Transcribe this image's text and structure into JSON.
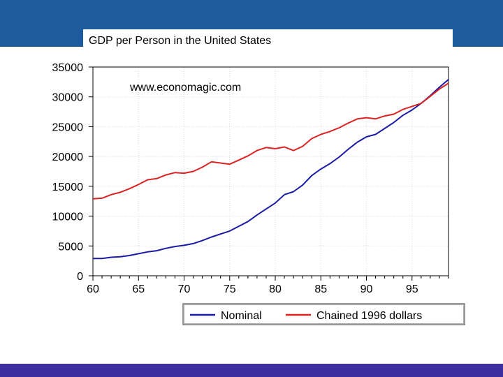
{
  "slide": {
    "title": "GDP per Person in the United States",
    "colors": {
      "header_band": "#1e5a9e",
      "footer_band": "#3d2fa0"
    }
  },
  "chart_data": {
    "type": "line",
    "title": "GDP per Person in the United States",
    "annotation": "www.economagic.com",
    "xlabel": "",
    "ylabel": "",
    "xlim": [
      1960,
      1999
    ],
    "ylim": [
      0,
      35000
    ],
    "x_ticks": [
      {
        "value": 1960,
        "label": "60"
      },
      {
        "value": 1965,
        "label": "65"
      },
      {
        "value": 1970,
        "label": "70"
      },
      {
        "value": 1975,
        "label": "75"
      },
      {
        "value": 1980,
        "label": "80"
      },
      {
        "value": 1985,
        "label": "85"
      },
      {
        "value": 1990,
        "label": "90"
      },
      {
        "value": 1995,
        "label": "95"
      }
    ],
    "y_ticks": [
      {
        "value": 0,
        "label": "0"
      },
      {
        "value": 5000,
        "label": "5000"
      },
      {
        "value": 10000,
        "label": "10000"
      },
      {
        "value": 15000,
        "label": "15000"
      },
      {
        "value": 20000,
        "label": "20000"
      },
      {
        "value": 25000,
        "label": "25000"
      },
      {
        "value": 30000,
        "label": "30000"
      },
      {
        "value": 35000,
        "label": "35000"
      }
    ],
    "grid": true,
    "legend_position": "bottom",
    "x": [
      1960,
      1961,
      1962,
      1963,
      1964,
      1965,
      1966,
      1967,
      1968,
      1969,
      1970,
      1971,
      1972,
      1973,
      1974,
      1975,
      1976,
      1977,
      1978,
      1979,
      1980,
      1981,
      1982,
      1983,
      1984,
      1985,
      1986,
      1987,
      1988,
      1989,
      1990,
      1991,
      1992,
      1993,
      1994,
      1995,
      1996,
      1997,
      1998,
      1999
    ],
    "series": [
      {
        "name": "Nominal",
        "color": "#1a1aa6",
        "values": [
          2900,
          2900,
          3100,
          3200,
          3400,
          3700,
          4000,
          4200,
          4600,
          4900,
          5100,
          5400,
          5900,
          6500,
          7000,
          7500,
          8300,
          9100,
          10200,
          11200,
          12200,
          13600,
          14100,
          15200,
          16800,
          17900,
          18800,
          19900,
          21200,
          22400,
          23300,
          23700,
          24700,
          25700,
          26900,
          27800,
          28900,
          30200,
          31600,
          32900
        ]
      },
      {
        "name": "Chained 1996 dollars",
        "color": "#dd2222",
        "values": [
          12900,
          13000,
          13600,
          14000,
          14600,
          15300,
          16100,
          16300,
          16900,
          17300,
          17200,
          17500,
          18200,
          19100,
          18900,
          18700,
          19400,
          20100,
          21000,
          21500,
          21300,
          21600,
          21000,
          21700,
          23000,
          23700,
          24200,
          24800,
          25600,
          26300,
          26500,
          26300,
          26800,
          27100,
          27900,
          28400,
          28900,
          30100,
          31300,
          32300
        ]
      }
    ]
  }
}
